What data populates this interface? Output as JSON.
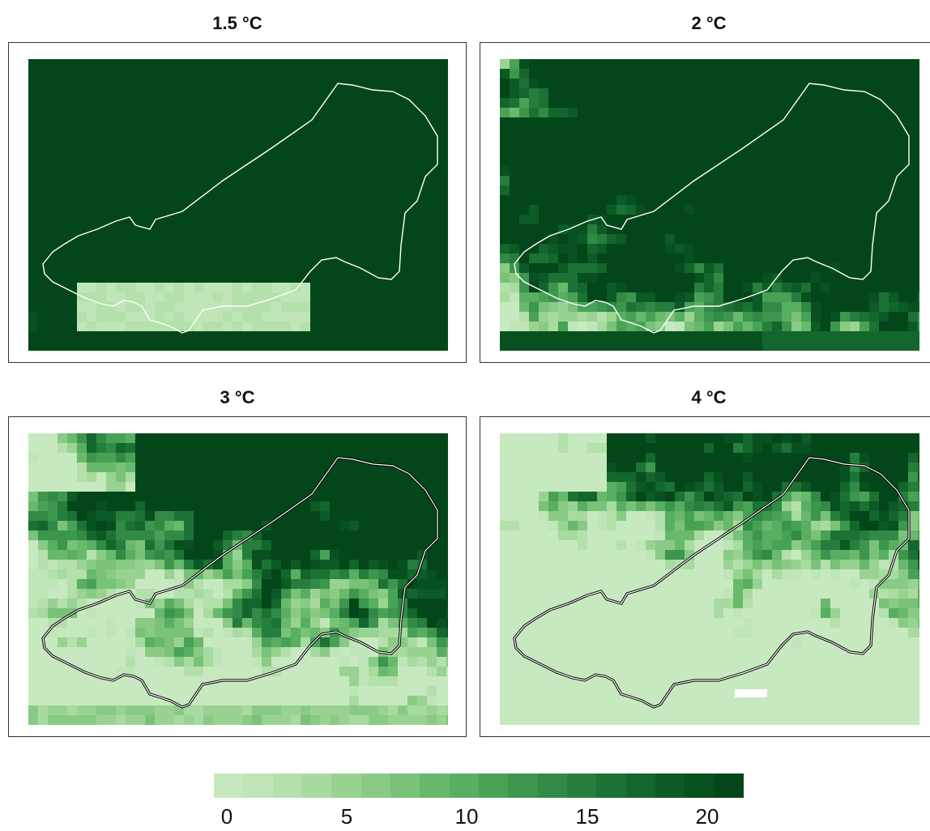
{
  "panels": [
    {
      "title": "1.5 °C",
      "scenario": 0
    },
    {
      "title": "2 °C",
      "scenario": 1
    },
    {
      "title": "3 °C",
      "scenario": 2
    },
    {
      "title": "4 °C",
      "scenario": 3
    }
  ],
  "legend": {
    "colors": [
      "#c7e9c0",
      "#bfe5b8",
      "#b4e0ac",
      "#a8db9f",
      "#99d392",
      "#89cb85",
      "#79c278",
      "#69b96c",
      "#58ae61",
      "#48a256",
      "#3c964d",
      "#318a45",
      "#267e3c",
      "#1c7234",
      "#13662c",
      "#0c5a25",
      "#07501f",
      "#03461a"
    ],
    "ticks": [
      "0",
      "5",
      "10",
      "15",
      "20"
    ],
    "tick_values": [
      0,
      5,
      10,
      15,
      20
    ],
    "range": [
      -0.5,
      21.5
    ]
  },
  "colors": {
    "region_outline_light": "#ffffff",
    "region_outline_dark": "#000000"
  }
}
